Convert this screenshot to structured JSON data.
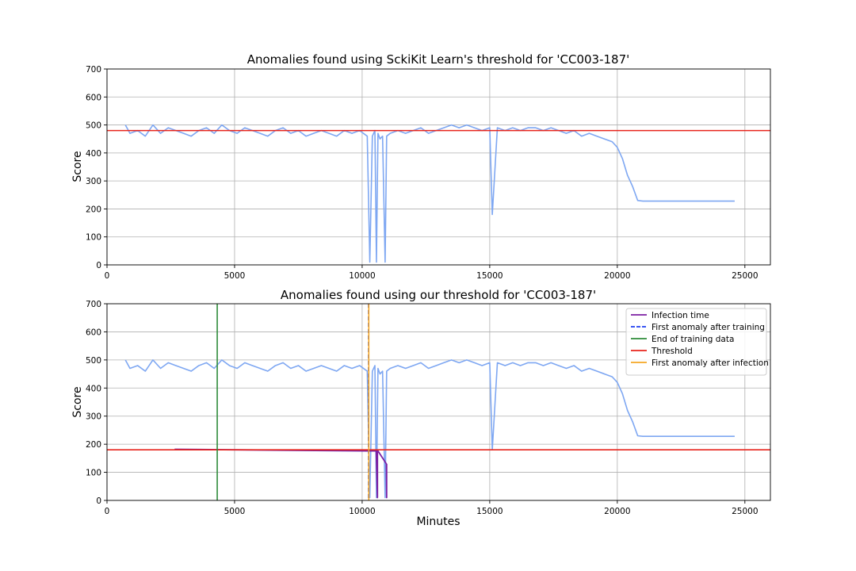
{
  "chart_data": [
    {
      "type": "line",
      "title": "Anomalies found using SckiKit Learn's threshold for 'CC003-187'",
      "xlabel": "",
      "ylabel": "Score",
      "xlim": [
        0,
        26000
      ],
      "ylim": [
        0,
        700
      ],
      "xticks": [
        0,
        5000,
        10000,
        15000,
        20000,
        25000
      ],
      "yticks": [
        0,
        100,
        200,
        300,
        400,
        500,
        600,
        700
      ],
      "grid": true,
      "series": [
        {
          "color": "#7ea7f2",
          "description": "score over time (dense, noisy)",
          "x": [
            720,
            900,
            1200,
            1500,
            1800,
            2100,
            2400,
            2700,
            3000,
            3300,
            3600,
            3900,
            4200,
            4500,
            4800,
            5100,
            5400,
            5700,
            6000,
            6300,
            6600,
            6900,
            7200,
            7500,
            7800,
            8100,
            8400,
            8700,
            9000,
            9300,
            9600,
            9900,
            10200,
            10300,
            10400,
            10500,
            10560,
            10620,
            10700,
            10800,
            10900,
            10960,
            11100,
            11400,
            11700,
            12000,
            12300,
            12600,
            12900,
            13200,
            13500,
            13800,
            14100,
            14400,
            14700,
            15000,
            15100,
            15300,
            15600,
            15900,
            16200,
            16500,
            16800,
            17100,
            17400,
            17700,
            18000,
            18300,
            18600,
            18900,
            19200,
            19500,
            19800,
            20000,
            20200,
            20400,
            20600,
            20800,
            21000,
            22000,
            23000,
            24600
          ],
          "y": [
            500,
            470,
            480,
            460,
            500,
            470,
            490,
            480,
            470,
            460,
            480,
            490,
            470,
            500,
            480,
            470,
            490,
            480,
            470,
            460,
            480,
            490,
            470,
            480,
            460,
            470,
            480,
            470,
            460,
            480,
            470,
            480,
            460,
            10,
            460,
            480,
            10,
            470,
            450,
            460,
            10,
            460,
            470,
            480,
            470,
            480,
            490,
            470,
            480,
            490,
            500,
            490,
            500,
            490,
            480,
            490,
            180,
            490,
            480,
            490,
            480,
            490,
            490,
            480,
            490,
            480,
            470,
            480,
            460,
            470,
            460,
            450,
            440,
            420,
            380,
            320,
            280,
            230,
            228,
            228,
            228,
            228
          ]
        }
      ],
      "hlines": [
        {
          "name": "Threshold",
          "y": 480,
          "color": "#e8251c"
        }
      ]
    },
    {
      "type": "line",
      "title": "Anomalies found using our threshold for 'CC003-187'",
      "xlabel": "Minutes",
      "ylabel": "Score",
      "xlim": [
        0,
        26000
      ],
      "ylim": [
        0,
        700
      ],
      "xticks": [
        0,
        5000,
        10000,
        15000,
        20000,
        25000
      ],
      "yticks": [
        0,
        100,
        200,
        300,
        400,
        500,
        600,
        700
      ],
      "grid": true,
      "legend_position": "top-right",
      "series": [
        {
          "color": "#7ea7f2",
          "description": "score over time (dense, noisy)",
          "x": [
            720,
            900,
            1200,
            1500,
            1800,
            2100,
            2400,
            2700,
            3000,
            3300,
            3600,
            3900,
            4200,
            4500,
            4800,
            5100,
            5400,
            5700,
            6000,
            6300,
            6600,
            6900,
            7200,
            7500,
            7800,
            8100,
            8400,
            8700,
            9000,
            9300,
            9600,
            9900,
            10200,
            10300,
            10400,
            10500,
            10560,
            10620,
            10700,
            10800,
            10900,
            10960,
            11100,
            11400,
            11700,
            12000,
            12300,
            12600,
            12900,
            13200,
            13500,
            13800,
            14100,
            14400,
            14700,
            15000,
            15100,
            15300,
            15600,
            15900,
            16200,
            16500,
            16800,
            17100,
            17400,
            17700,
            18000,
            18300,
            18600,
            18900,
            19200,
            19500,
            19800,
            20000,
            20200,
            20400,
            20600,
            20800,
            21000,
            22000,
            23000,
            24600
          ],
          "y": [
            500,
            470,
            480,
            460,
            500,
            470,
            490,
            480,
            470,
            460,
            480,
            490,
            470,
            500,
            480,
            470,
            490,
            480,
            470,
            460,
            480,
            490,
            470,
            480,
            460,
            470,
            480,
            470,
            460,
            480,
            470,
            480,
            460,
            10,
            460,
            480,
            10,
            470,
            450,
            460,
            10,
            460,
            470,
            480,
            470,
            480,
            490,
            470,
            480,
            490,
            500,
            490,
            500,
            490,
            480,
            490,
            180,
            490,
            480,
            490,
            480,
            490,
            490,
            480,
            490,
            480,
            470,
            480,
            460,
            470,
            460,
            450,
            440,
            420,
            380,
            320,
            280,
            230,
            228,
            228,
            228,
            228
          ]
        },
        {
          "name": "Infection time",
          "color": "#7b1fa2",
          "x": [
            2650,
            10200,
            10550,
            10600,
            10600,
            10620,
            10950,
            10960,
            10960
          ],
          "y": [
            182,
            176,
            176,
            10,
            176,
            176,
            130,
            10,
            130
          ]
        }
      ],
      "vlines": [
        {
          "name": "First anomaly after training",
          "x": 10250,
          "color": "#1f3ff0",
          "dash": true
        },
        {
          "name": "End of training data",
          "x": 4320,
          "color": "#2e8b3a"
        },
        {
          "name": "First anomaly after infection",
          "x": 10260,
          "color": "#f5a623"
        }
      ],
      "hlines": [
        {
          "name": "Threshold",
          "y": 180,
          "color": "#e8251c"
        }
      ],
      "legend": [
        {
          "label": "Infection time",
          "color": "#7b1fa2",
          "dash": false
        },
        {
          "label": "First anomaly after training",
          "color": "#1f3ff0",
          "dash": true
        },
        {
          "label": "End of training data",
          "color": "#2e8b3a",
          "dash": false
        },
        {
          "label": "Threshold",
          "color": "#e8251c",
          "dash": false
        },
        {
          "label": "First anomaly after infection",
          "color": "#f5a623",
          "dash": false
        }
      ]
    }
  ]
}
